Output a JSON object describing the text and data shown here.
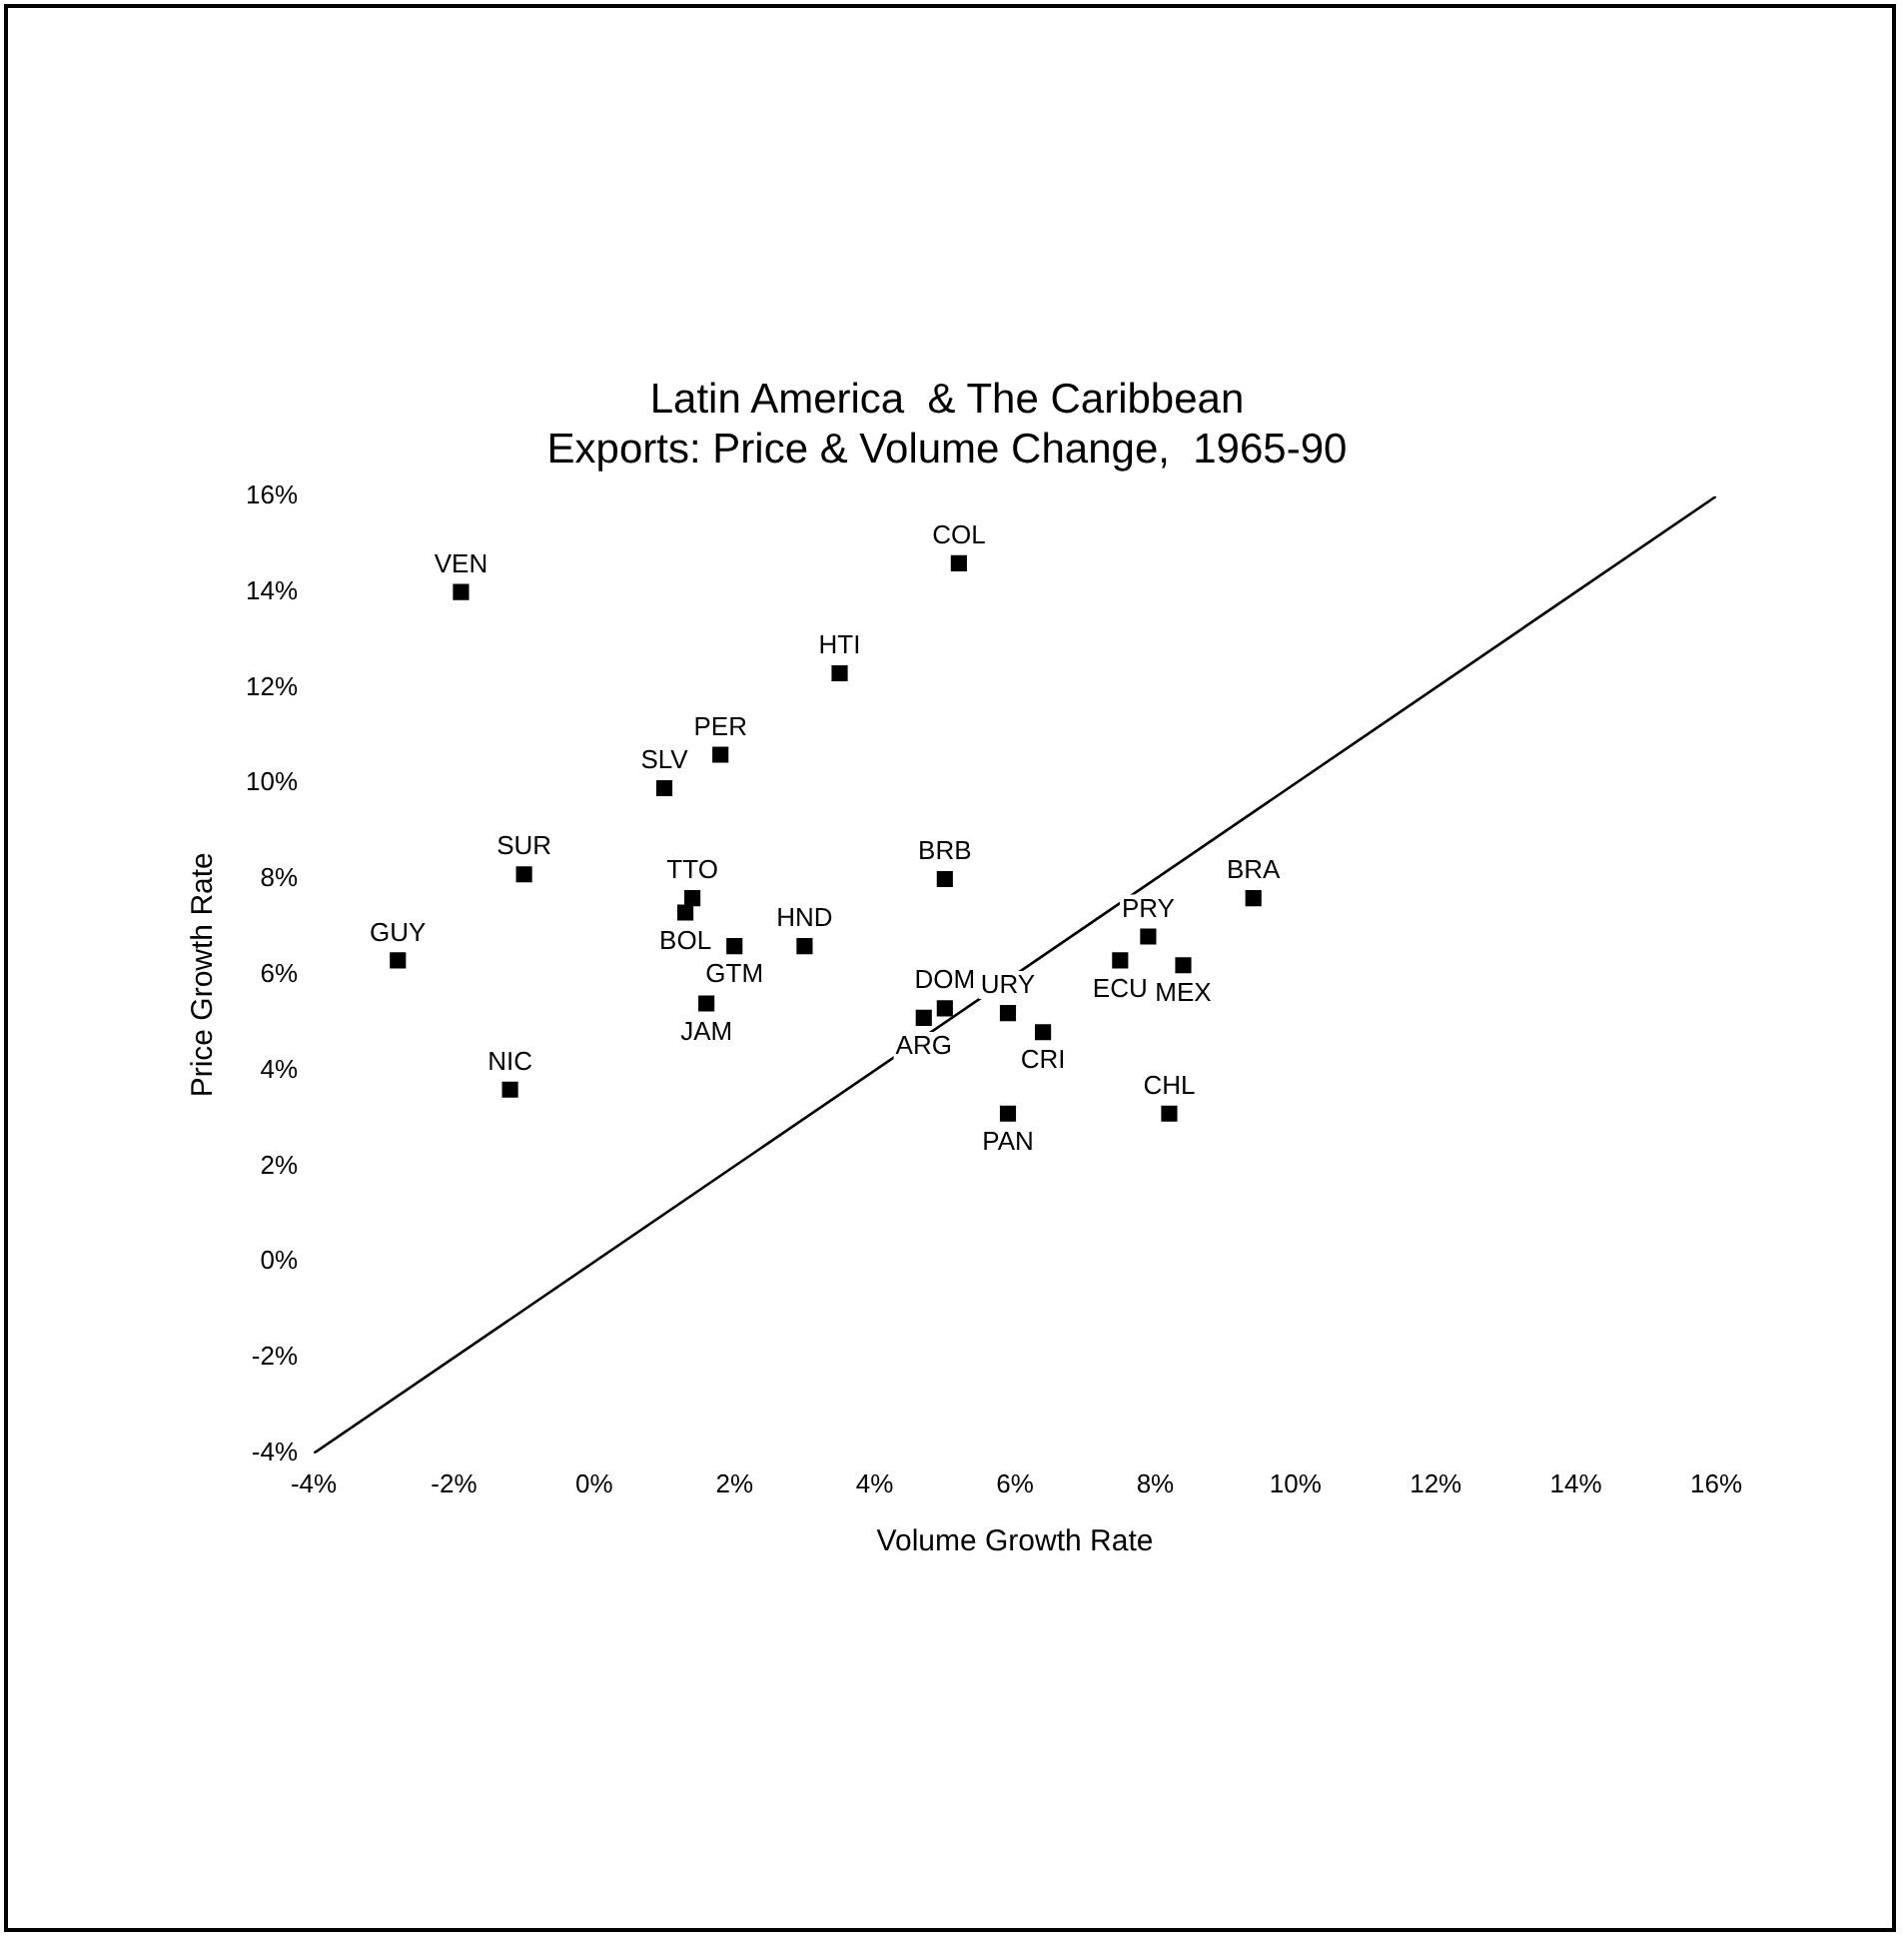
{
  "chart_data": {
    "type": "scatter",
    "title": "Latin America  & The Caribbean",
    "subtitle": "Exports: Price & Volume Change,  1965-90",
    "xlabel": "Volume Growth Rate",
    "ylabel": "Price Growth Rate",
    "xlim": [
      -4,
      16
    ],
    "ylim": [
      -4,
      16
    ],
    "xticks": [
      {
        "value": -4,
        "label": "-4%"
      },
      {
        "value": -2,
        "label": "-2%"
      },
      {
        "value": 0,
        "label": "0%"
      },
      {
        "value": 2,
        "label": "2%"
      },
      {
        "value": 4,
        "label": "4%"
      },
      {
        "value": 6,
        "label": "6%"
      },
      {
        "value": 8,
        "label": "8%"
      },
      {
        "value": 10,
        "label": "10%"
      },
      {
        "value": 12,
        "label": "12%"
      },
      {
        "value": 14,
        "label": "14%"
      },
      {
        "value": 16,
        "label": "16%"
      }
    ],
    "yticks": [
      {
        "value": -4,
        "label": "-4%"
      },
      {
        "value": -2,
        "label": "-2%"
      },
      {
        "value": 0,
        "label": "0%"
      },
      {
        "value": 2,
        "label": "2%"
      },
      {
        "value": 4,
        "label": "4%"
      },
      {
        "value": 6,
        "label": "6%"
      },
      {
        "value": 8,
        "label": "8%"
      },
      {
        "value": 10,
        "label": "10%"
      },
      {
        "value": 12,
        "label": "12%"
      },
      {
        "value": 14,
        "label": "14%"
      },
      {
        "value": 16,
        "label": "16%"
      }
    ],
    "grid": false,
    "legend": false,
    "marker": "square",
    "series": [
      {
        "name": "VEN",
        "color": "#000000",
        "x": [
          -1.9
        ],
        "values": [
          14.0
        ]
      },
      {
        "name": "COL",
        "color": "#000000",
        "x": [
          5.2
        ],
        "values": [
          14.6
        ]
      },
      {
        "name": "HTI",
        "color": "#000000",
        "x": [
          3.5
        ],
        "values": [
          12.3
        ]
      },
      {
        "name": "PER",
        "color": "#000000",
        "x": [
          1.8
        ],
        "values": [
          10.6
        ]
      },
      {
        "name": "SLV",
        "color": "#000000",
        "x": [
          1.0
        ],
        "values": [
          9.9
        ]
      },
      {
        "name": "SUR",
        "color": "#000000",
        "x": [
          -1.0
        ],
        "values": [
          8.1
        ]
      },
      {
        "name": "BRB",
        "color": "#000000",
        "x": [
          5.0
        ],
        "values": [
          8.0
        ]
      },
      {
        "name": "TTO",
        "color": "#000000",
        "x": [
          1.4
        ],
        "values": [
          7.6
        ]
      },
      {
        "name": "BOL",
        "color": "#000000",
        "x": [
          1.3
        ],
        "values": [
          7.3
        ]
      },
      {
        "name": "GTM",
        "color": "#000000",
        "x": [
          2.0
        ],
        "values": [
          6.6
        ]
      },
      {
        "name": "HND",
        "color": "#000000",
        "x": [
          3.0
        ],
        "values": [
          6.6
        ]
      },
      {
        "name": "GUY",
        "color": "#000000",
        "x": [
          -2.8
        ],
        "values": [
          6.3
        ]
      },
      {
        "name": "JAM",
        "color": "#000000",
        "x": [
          1.6
        ],
        "values": [
          5.4
        ]
      },
      {
        "name": "NIC",
        "color": "#000000",
        "x": [
          -1.2
        ],
        "values": [
          3.6
        ]
      },
      {
        "name": "ARG",
        "color": "#000000",
        "x": [
          4.7
        ],
        "values": [
          5.1
        ]
      },
      {
        "name": "DOM",
        "color": "#000000",
        "x": [
          5.0
        ],
        "values": [
          5.3
        ]
      },
      {
        "name": "URY",
        "color": "#000000",
        "x": [
          5.9
        ],
        "values": [
          5.2
        ]
      },
      {
        "name": "CRI",
        "color": "#000000",
        "x": [
          6.4
        ],
        "values": [
          4.8
        ]
      },
      {
        "name": "PAN",
        "color": "#000000",
        "x": [
          5.9
        ],
        "values": [
          3.1
        ]
      },
      {
        "name": "CHL",
        "color": "#000000",
        "x": [
          8.2
        ],
        "values": [
          3.1
        ]
      },
      {
        "name": "ECU",
        "color": "#000000",
        "x": [
          7.5
        ],
        "values": [
          6.3
        ]
      },
      {
        "name": "PRY",
        "color": "#000000",
        "x": [
          7.9
        ],
        "values": [
          6.8
        ]
      },
      {
        "name": "MEX",
        "color": "#000000",
        "x": [
          8.4
        ],
        "values": [
          6.2
        ]
      },
      {
        "name": "BRA",
        "color": "#000000",
        "x": [
          9.4
        ],
        "values": [
          7.6
        ]
      },
      {
        "type": "line",
        "color": "#000000",
        "marker": "none",
        "line_style": "solid",
        "x": [
          -4,
          16
        ],
        "values": [
          -4,
          16
        ]
      }
    ]
  }
}
